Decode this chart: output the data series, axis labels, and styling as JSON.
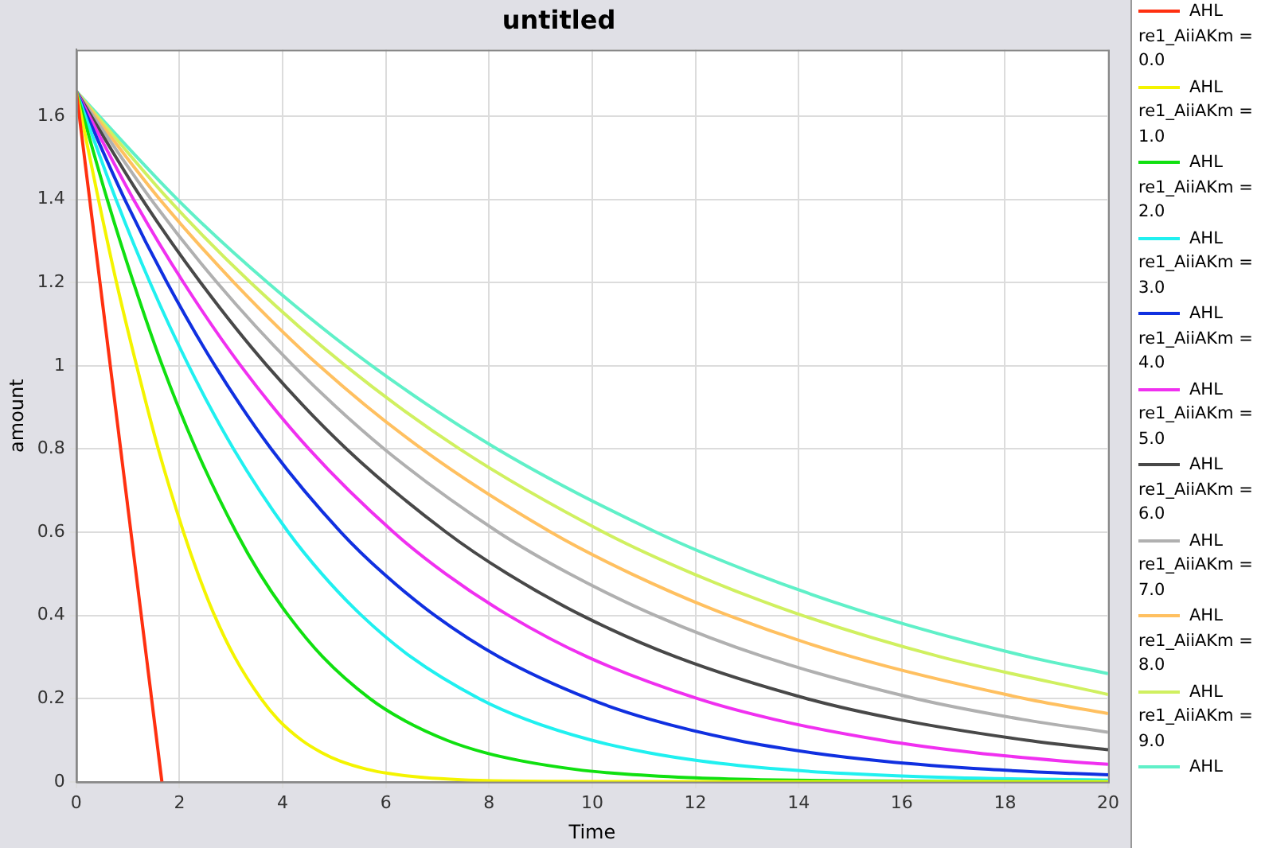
{
  "chart_data": {
    "type": "line",
    "title": "untitled",
    "xlabel": "Time",
    "ylabel": "amount",
    "xlim": [
      0,
      20
    ],
    "xticks": [
      0,
      2,
      4,
      6,
      8,
      10,
      12,
      14,
      16,
      18,
      20
    ],
    "ylim": [
      0,
      1.76
    ],
    "yticks": [
      0,
      0.2,
      0.4,
      0.6,
      0.8,
      1,
      1.2,
      1.4,
      1.6
    ],
    "grid": true,
    "legend": "right",
    "marker": "none",
    "line_style": "solid",
    "series": [
      {
        "name": "AHL re1_AiiAKm = 0.0",
        "color": "#ff3010",
        "x": [
          0,
          1.66
        ],
        "values": [
          1.66,
          0
        ]
      },
      {
        "name": "AHL re1_AiiAKm = 1.0",
        "color": "#f4f400",
        "x": [
          0,
          0.43,
          0.78,
          1.17,
          1.59,
          2.08,
          2.36,
          2.68,
          3.07,
          3.58,
          3.91,
          4.37,
          4.76,
          5.11,
          5.64,
          6.06,
          6.76,
          7.46,
          8.38,
          9.07,
          20
        ],
        "values": [
          1.66,
          1.4,
          1.2,
          1.0,
          0.8,
          0.6,
          0.5,
          0.4,
          0.3,
          0.2,
          0.15,
          0.1,
          0.07,
          0.05,
          0.03,
          0.02,
          0.01,
          0.005,
          0.002,
          0.001,
          0
        ]
      },
      {
        "name": "AHL re1_AiiAKm = 2.0",
        "color": "#10e010",
        "x": [
          0,
          0.6,
          1.11,
          1.67,
          2.32,
          3.1,
          3.56,
          4.11,
          4.78,
          5.69,
          6.32,
          7.18,
          7.92,
          8.64,
          9.67,
          10.48,
          11.87,
          13.27,
          15.1,
          20
        ],
        "values": [
          1.66,
          1.4,
          1.2,
          1.0,
          0.8,
          0.6,
          0.5,
          0.4,
          0.3,
          0.2,
          0.15,
          0.1,
          0.07,
          0.05,
          0.03,
          0.02,
          0.01,
          0.005,
          0.002,
          0
        ]
      },
      {
        "name": "AHL re1_AiiAKm = 3.0",
        "color": "#20f0f0",
        "x": [
          0,
          0.77,
          1.43,
          2.18,
          3.05,
          4.11,
          4.76,
          5.53,
          6.49,
          7.81,
          8.72,
          9.99,
          11.09,
          12.12,
          13.67,
          14.9,
          16.99,
          20
        ],
        "values": [
          1.66,
          1.4,
          1.2,
          1.0,
          0.8,
          0.6,
          0.5,
          0.4,
          0.3,
          0.2,
          0.15,
          0.1,
          0.07,
          0.05,
          0.03,
          0.02,
          0.01,
          0.004
        ]
      },
      {
        "name": "AHL re1_AiiAKm = 4.0",
        "color": "#1030e0",
        "x": [
          0,
          0.94,
          1.76,
          2.69,
          3.78,
          5.13,
          5.96,
          6.95,
          8.2,
          9.93,
          11.13,
          12.8,
          14.25,
          15.62,
          17.68,
          19.32,
          20
        ],
        "values": [
          1.66,
          1.4,
          1.2,
          1.0,
          0.8,
          0.6,
          0.5,
          0.4,
          0.3,
          0.2,
          0.15,
          0.1,
          0.07,
          0.05,
          0.03,
          0.02,
          0.017
        ]
      },
      {
        "name": "AHL re1_AiiAKm = 5.0",
        "color": "#f030f0",
        "x": [
          0,
          1.11,
          2.08,
          3.19,
          4.51,
          6.15,
          7.16,
          8.38,
          9.91,
          12.04,
          13.53,
          15.61,
          17.42,
          19.12,
          20
        ],
        "values": [
          1.66,
          1.4,
          1.2,
          1.0,
          0.8,
          0.6,
          0.5,
          0.4,
          0.3,
          0.2,
          0.15,
          0.1,
          0.07,
          0.05,
          0.042
        ]
      },
      {
        "name": "AHL re1_AiiAKm = 6.0",
        "color": "#484848",
        "x": [
          0,
          1.28,
          2.41,
          3.7,
          5.24,
          7.17,
          8.36,
          9.8,
          11.63,
          14.16,
          15.93,
          18.42,
          20
        ],
        "values": [
          1.66,
          1.4,
          1.2,
          1.0,
          0.8,
          0.6,
          0.5,
          0.4,
          0.3,
          0.2,
          0.15,
          0.1,
          0.077
        ]
      },
      {
        "name": "AHL re1_AiiAKm = 7.0",
        "color": "#b0b0b0",
        "x": [
          0,
          1.45,
          2.73,
          4.21,
          5.97,
          8.18,
          9.56,
          11.22,
          13.34,
          16.27,
          18.34,
          20
        ],
        "values": [
          1.66,
          1.4,
          1.2,
          1.0,
          0.8,
          0.6,
          0.5,
          0.4,
          0.3,
          0.2,
          0.15,
          0.119
        ]
      },
      {
        "name": "AHL re1_AiiAKm = 8.0",
        "color": "#ffc060",
        "x": [
          0,
          1.62,
          3.06,
          4.71,
          6.7,
          9.2,
          10.76,
          12.64,
          15.05,
          18.39,
          20
        ],
        "values": [
          1.66,
          1.4,
          1.2,
          1.0,
          0.8,
          0.6,
          0.5,
          0.4,
          0.3,
          0.2,
          0.164
        ]
      },
      {
        "name": "AHL re1_AiiAKm = 9.0",
        "color": "#d0f060",
        "x": [
          0,
          1.79,
          3.38,
          5.22,
          7.43,
          10.22,
          11.96,
          14.07,
          16.76,
          20
        ],
        "values": [
          1.66,
          1.4,
          1.2,
          1.0,
          0.8,
          0.6,
          0.5,
          0.4,
          0.3,
          0.21
        ]
      },
      {
        "name": "AHL",
        "color": "#60f0c8",
        "x": [
          0,
          1.96,
          3.71,
          5.73,
          8.16,
          11.24,
          13.16,
          15.49,
          18.47,
          20
        ],
        "values": [
          1.66,
          1.4,
          1.2,
          1.0,
          0.8,
          0.6,
          0.5,
          0.4,
          0.3,
          0.26
        ]
      }
    ]
  }
}
